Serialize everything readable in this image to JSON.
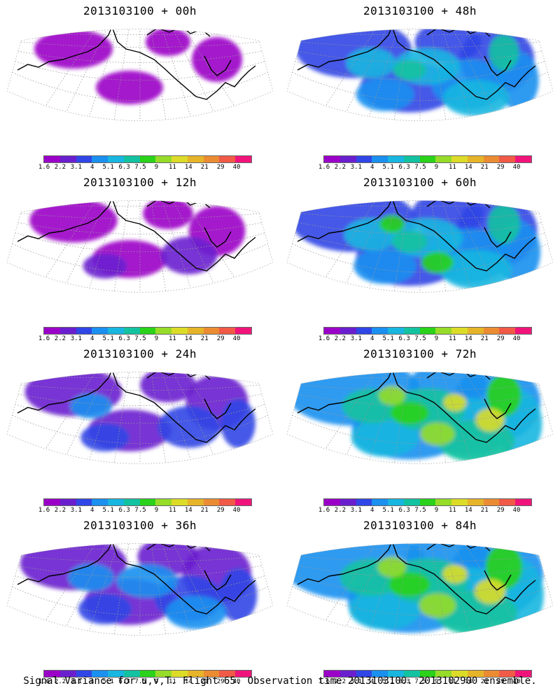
{
  "panels": [
    {
      "title": "2013103100 + 00h",
      "level": 0
    },
    {
      "title": "2013103100 + 48h",
      "level": 4
    },
    {
      "title": "2013103100 + 12h",
      "level": 1
    },
    {
      "title": "2013103100 + 60h",
      "level": 5
    },
    {
      "title": "2013103100 + 24h",
      "level": 2
    },
    {
      "title": "2013103100 + 72h",
      "level": 6
    },
    {
      "title": "2013103100 + 36h",
      "level": 3
    },
    {
      "title": "2013103100 + 84h",
      "level": 7
    }
  ],
  "colorbar": {
    "colors": [
      "#9b00c8",
      "#6a1fcf",
      "#3046e6",
      "#1a90f0",
      "#18b6e0",
      "#12c2a0",
      "#2ad21a",
      "#96dc28",
      "#dcdc28",
      "#e6b428",
      "#eb8c32",
      "#f05a46",
      "#f0147a"
    ],
    "labels": [
      "1.6",
      "2.2",
      "3.1",
      "4",
      "5.1",
      "6.3",
      "7.5",
      "9",
      "11",
      "14",
      "21",
      "29",
      "40"
    ]
  },
  "footer": "Signal Variance for u,v,T. Flight 65. Observation time 2013103100. 2013102900 ensemble."
}
